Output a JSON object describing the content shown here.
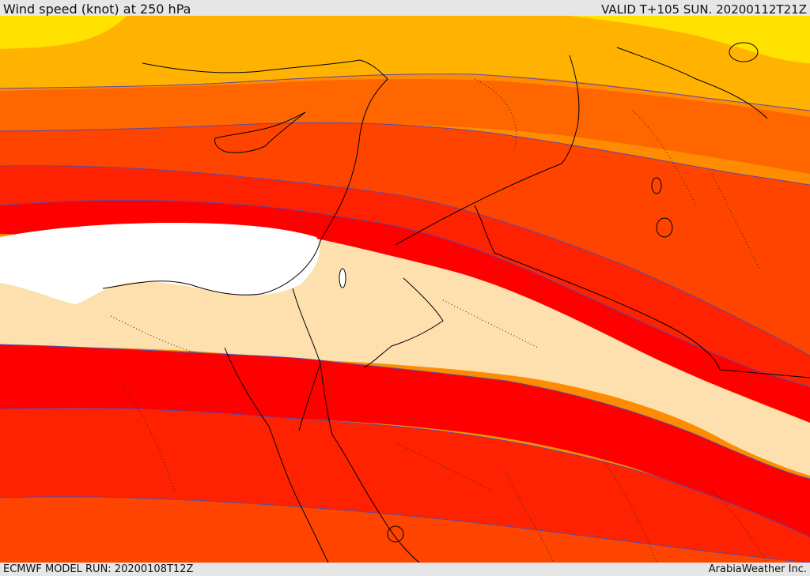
{
  "header": {
    "title": "Wind speed (knot) at 250 hPa",
    "valid_time": "VALID T+105 SUN. 20200112T21Z"
  },
  "footer": {
    "model_run": "ECMWF MODEL RUN: 20200108T12Z",
    "credit": "ArabiaWeather Inc."
  },
  "colors": {
    "calm": "#ffffff",
    "band_beige": "#fde0ae",
    "band_yellow": "#ffe200",
    "band_amber": "#ffb300",
    "band_orange": "#ff8c00",
    "band_dark_orange": "#ff6600",
    "band_red_orange": "#ff4400",
    "band_scarlet": "#ff2200",
    "band_red": "#ff0000",
    "contour_line": "#5a4aa8",
    "boundary_line": "#000000"
  }
}
